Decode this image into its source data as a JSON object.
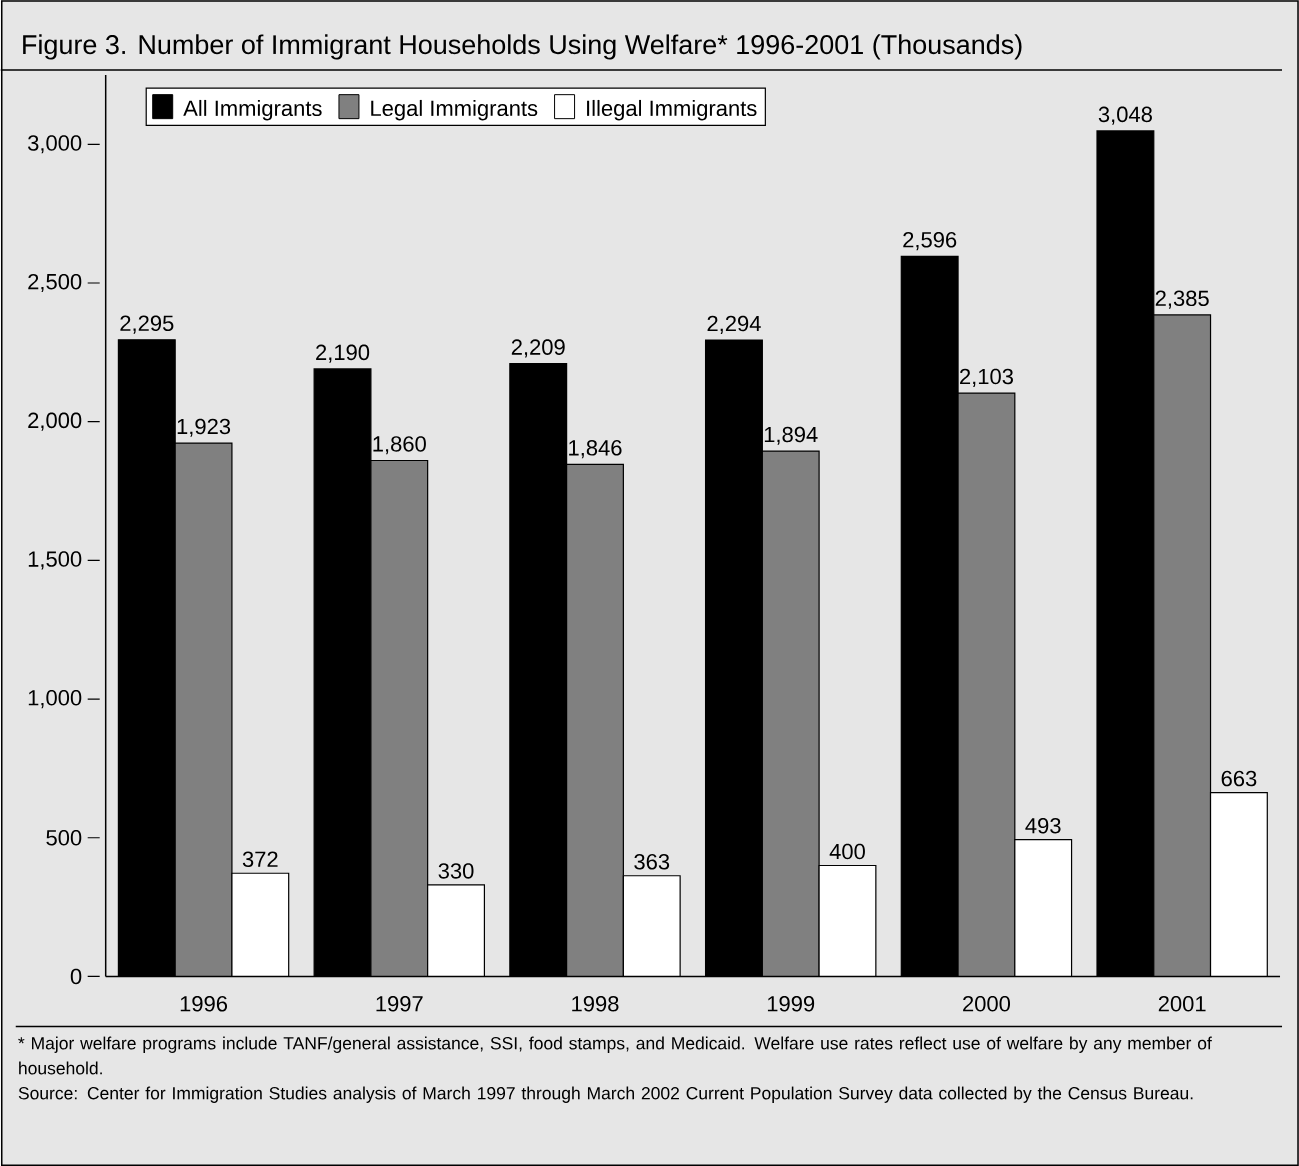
{
  "chart_data": {
    "type": "bar",
    "title": "Figure 3. Number of Immigrant Households Using Welfare* 1996-2001 (Thousands)",
    "categories": [
      "1996",
      "1997",
      "1998",
      "1999",
      "2000",
      "2001"
    ],
    "series": [
      {
        "name": "All Immigrants",
        "color": "#000000",
        "values": [
          2295,
          2190,
          2209,
          2294,
          2596,
          3048
        ],
        "value_labels": [
          "2,295",
          "2,190",
          "2,209",
          "2,294",
          "2,596",
          "3,048"
        ]
      },
      {
        "name": "Legal Immigrants",
        "color": "#808080",
        "values": [
          1923,
          1860,
          1846,
          1894,
          2103,
          2385
        ],
        "value_labels": [
          "1,923",
          "1,860",
          "1,846",
          "1,894",
          "2,103",
          "2,385"
        ]
      },
      {
        "name": "Illegal Immigrants",
        "color": "#ffffff",
        "values": [
          372,
          330,
          363,
          400,
          493,
          663
        ],
        "value_labels": [
          "372",
          "330",
          "363",
          "400",
          "493",
          "663"
        ]
      }
    ],
    "ylim": [
      0,
      3250
    ],
    "yticks": [
      0,
      {
        "value": 500,
        "label": "500"
      },
      {
        "value": 1000,
        "label": "1,000"
      },
      {
        "value": 1500,
        "label": "1,500"
      },
      {
        "value": 2000,
        "label": "2,000"
      },
      {
        "value": 2500,
        "label": "2,500"
      },
      {
        "value": 3000,
        "label": "3,000"
      }
    ],
    "grid": false,
    "legend": "top left",
    "annotations": [
      "* Major welfare programs include TANF/general assistance, SSI, food stamps, and Medicaid. Welfare use rates reflect use of welfare by any member of household.",
      "Source: Center for Immigration Studies analysis of March 1997 through March 2002 Current Population Survey data collected by the Census Bureau."
    ]
  }
}
